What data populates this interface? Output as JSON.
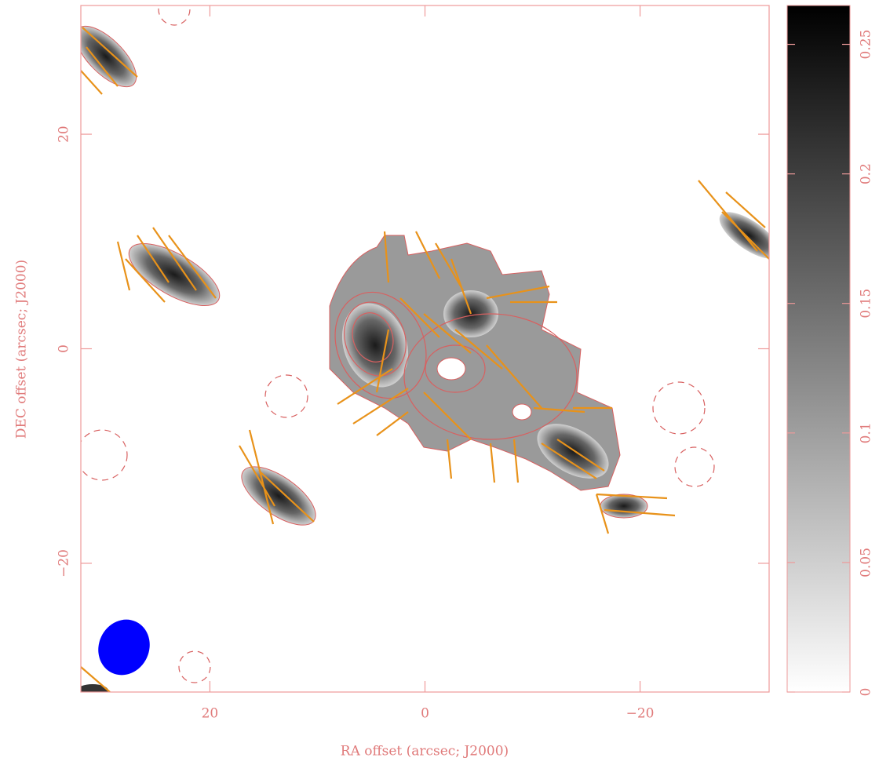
{
  "chart_data": {
    "type": "image",
    "x_label": "RA offset (arcsec; J2000)",
    "y_label": "DEC offset (arcsec; J2000)",
    "xlim": [
      32,
      -32
    ],
    "xticks": [
      20,
      0,
      {
        "value": -20,
        "label": "−20"
      }
    ],
    "ylim": [
      -32,
      32
    ],
    "yticks": [
      {
        "value": -20,
        "label": "−20"
      },
      0,
      20
    ],
    "colorbar": {
      "lim": [
        0,
        0.265
      ],
      "ticks": [
        0,
        0.05,
        0.1,
        0.15,
        0.2,
        0.25
      ]
    }
  }
}
